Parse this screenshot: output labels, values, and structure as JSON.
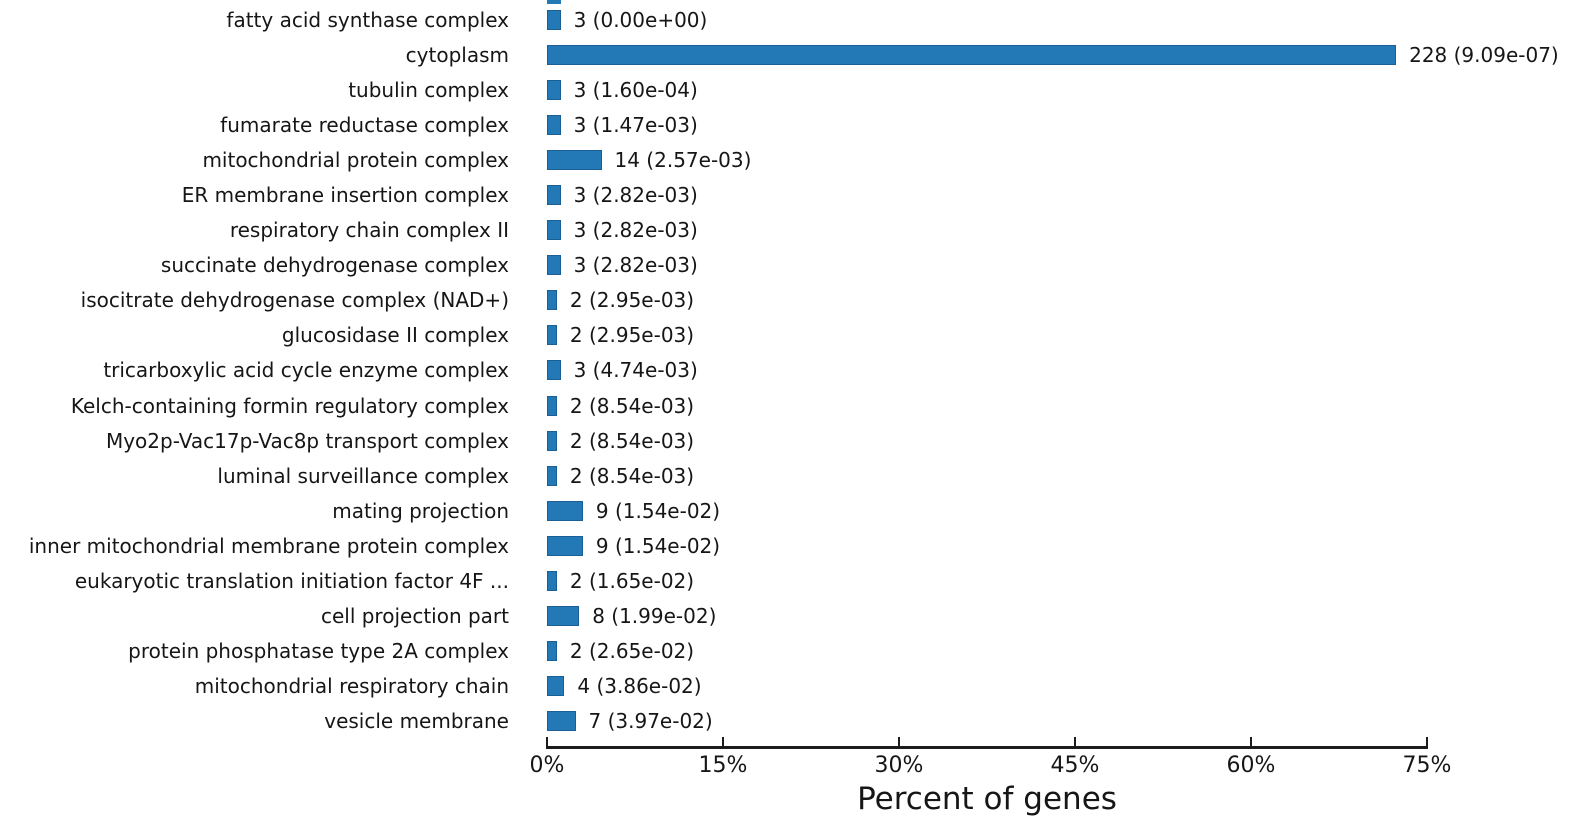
{
  "chart_data": {
    "type": "bar",
    "orientation": "horizontal",
    "title": "",
    "xlabel": "Percent of genes",
    "ylabel": "",
    "xlim": [
      0,
      75
    ],
    "grid": false,
    "legend": false,
    "bar_color": "#2379b6",
    "x_tick_values": [
      0,
      15,
      30,
      45,
      60,
      75
    ],
    "x_tick_labels": [
      "0%",
      "15%",
      "30%",
      "45%",
      "60%",
      "75%"
    ],
    "bars": [
      {
        "category": "fatty acid synthase complex",
        "gene_count": 3,
        "p_value": "0.00e+00",
        "percent": 0.95,
        "value_label": "3 (0.00e+00)"
      },
      {
        "category": "cytoplasm",
        "gene_count": 228,
        "p_value": "9.09e-07",
        "percent": 72.15,
        "value_label": "228 (9.09e-07)"
      },
      {
        "category": "tubulin complex",
        "gene_count": 3,
        "p_value": "1.60e-04",
        "percent": 0.95,
        "value_label": "3 (1.60e-04)"
      },
      {
        "category": "fumarate reductase complex",
        "gene_count": 3,
        "p_value": "1.47e-03",
        "percent": 0.95,
        "value_label": "3 (1.47e-03)"
      },
      {
        "category": "mitochondrial protein complex",
        "gene_count": 14,
        "p_value": "2.57e-03",
        "percent": 4.43,
        "value_label": "14 (2.57e-03)"
      },
      {
        "category": "ER membrane insertion complex",
        "gene_count": 3,
        "p_value": "2.82e-03",
        "percent": 0.95,
        "value_label": "3 (2.82e-03)"
      },
      {
        "category": "respiratory chain complex II",
        "gene_count": 3,
        "p_value": "2.82e-03",
        "percent": 0.95,
        "value_label": "3 (2.82e-03)"
      },
      {
        "category": "succinate dehydrogenase complex",
        "gene_count": 3,
        "p_value": "2.82e-03",
        "percent": 0.95,
        "value_label": "3 (2.82e-03)"
      },
      {
        "category": "isocitrate dehydrogenase complex (NAD+)",
        "gene_count": 2,
        "p_value": "2.95e-03",
        "percent": 0.63,
        "value_label": "2 (2.95e-03)"
      },
      {
        "category": "glucosidase II complex",
        "gene_count": 2,
        "p_value": "2.95e-03",
        "percent": 0.63,
        "value_label": "2 (2.95e-03)"
      },
      {
        "category": "tricarboxylic acid cycle enzyme complex",
        "gene_count": 3,
        "p_value": "4.74e-03",
        "percent": 0.95,
        "value_label": "3 (4.74e-03)"
      },
      {
        "category": "Kelch-containing formin regulatory complex",
        "gene_count": 2,
        "p_value": "8.54e-03",
        "percent": 0.63,
        "value_label": "2 (8.54e-03)"
      },
      {
        "category": "Myo2p-Vac17p-Vac8p transport complex",
        "gene_count": 2,
        "p_value": "8.54e-03",
        "percent": 0.63,
        "value_label": "2 (8.54e-03)"
      },
      {
        "category": "luminal surveillance complex",
        "gene_count": 2,
        "p_value": "8.54e-03",
        "percent": 0.63,
        "value_label": "2 (8.54e-03)"
      },
      {
        "category": "mating projection",
        "gene_count": 9,
        "p_value": "1.54e-02",
        "percent": 2.85,
        "value_label": "9 (1.54e-02)"
      },
      {
        "category": "inner mitochondrial membrane protein complex",
        "gene_count": 9,
        "p_value": "1.54e-02",
        "percent": 2.85,
        "value_label": "9 (1.54e-02)"
      },
      {
        "category": "eukaryotic translation initiation factor 4F ...",
        "gene_count": 2,
        "p_value": "1.65e-02",
        "percent": 0.63,
        "value_label": "2 (1.65e-02)"
      },
      {
        "category": "cell projection part",
        "gene_count": 8,
        "p_value": "1.99e-02",
        "percent": 2.53,
        "value_label": "8 (1.99e-02)"
      },
      {
        "category": "protein phosphatase type 2A complex",
        "gene_count": 2,
        "p_value": "2.65e-02",
        "percent": 0.63,
        "value_label": "2 (2.65e-02)"
      },
      {
        "category": "mitochondrial respiratory chain",
        "gene_count": 4,
        "p_value": "3.86e-02",
        "percent": 1.27,
        "value_label": "4 (3.86e-02)"
      },
      {
        "category": "vesicle membrane",
        "gene_count": 7,
        "p_value": "3.97e-02",
        "percent": 2.22,
        "value_label": "7 (3.97e-02)"
      }
    ]
  }
}
